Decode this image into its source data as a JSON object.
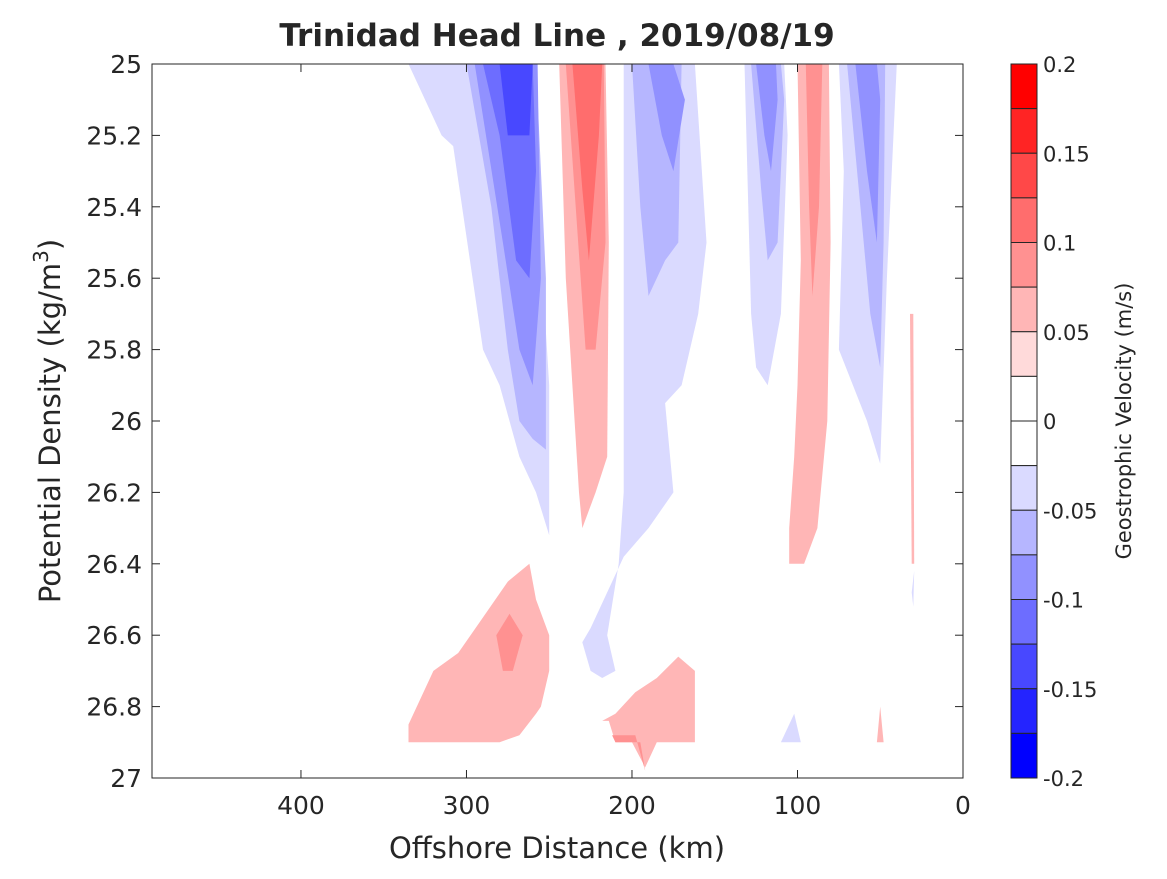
{
  "chart_data": {
    "type": "contour",
    "title": "Trinidad Head Line , 2019/08/19",
    "xlabel": "Offshore Distance (km)",
    "ylabel_main": "Potential Density (kg/m",
    "ylabel_sup": "3",
    "ylabel_close": ")",
    "xlim": [
      490,
      0
    ],
    "x_reversed": true,
    "ylim": [
      25,
      27
    ],
    "y_reversed": true,
    "x_ticks": [
      {
        "value": 400,
        "label": "400"
      },
      {
        "value": 300,
        "label": "300"
      },
      {
        "value": 200,
        "label": "200"
      },
      {
        "value": 100,
        "label": "100"
      },
      {
        "value": 0,
        "label": "0"
      }
    ],
    "y_ticks": [
      {
        "value": 25,
        "label": "25"
      },
      {
        "value": 25.2,
        "label": "25.2"
      },
      {
        "value": 25.4,
        "label": "25.4"
      },
      {
        "value": 25.6,
        "label": "25.6"
      },
      {
        "value": 25.8,
        "label": "25.8"
      },
      {
        "value": 26,
        "label": "26"
      },
      {
        "value": 26.2,
        "label": "26.2"
      },
      {
        "value": 26.4,
        "label": "26.4"
      },
      {
        "value": 26.6,
        "label": "26.6"
      },
      {
        "value": 26.8,
        "label": "26.8"
      },
      {
        "value": 27,
        "label": "27"
      }
    ],
    "colorbar": {
      "label": "Geostrophic Velocity (m/s)",
      "range": [
        -0.2,
        0.2
      ],
      "levels": [
        {
          "from": 0.175,
          "to": 0.2,
          "color": "#ff0000"
        },
        {
          "from": 0.15,
          "to": 0.175,
          "color": "#ff2424"
        },
        {
          "from": 0.125,
          "to": 0.15,
          "color": "#ff4848"
        },
        {
          "from": 0.1,
          "to": 0.125,
          "color": "#ff6d6d"
        },
        {
          "from": 0.075,
          "to": 0.1,
          "color": "#ff9191"
        },
        {
          "from": 0.05,
          "to": 0.075,
          "color": "#ffb6b6"
        },
        {
          "from": 0.025,
          "to": 0.05,
          "color": "#ffdada"
        },
        {
          "from": 0.0,
          "to": 0.025,
          "color": "#ffffff"
        },
        {
          "from": -0.025,
          "to": 0.0,
          "color": "#ffffff"
        },
        {
          "from": -0.05,
          "to": -0.025,
          "color": "#dadaff"
        },
        {
          "from": -0.075,
          "to": -0.05,
          "color": "#b6b6ff"
        },
        {
          "from": -0.1,
          "to": -0.075,
          "color": "#9191ff"
        },
        {
          "from": -0.125,
          "to": -0.1,
          "color": "#6d6dff"
        },
        {
          "from": -0.15,
          "to": -0.125,
          "color": "#4848ff"
        },
        {
          "from": -0.175,
          "to": -0.15,
          "color": "#2424ff"
        },
        {
          "from": -0.2,
          "to": -0.175,
          "color": "#0000ff"
        }
      ],
      "ticks": [
        {
          "value": 0.2,
          "label": "0.2"
        },
        {
          "value": 0.15,
          "label": "0.15"
        },
        {
          "value": 0.1,
          "label": "0.1"
        },
        {
          "value": 0.05,
          "label": "0.05"
        },
        {
          "value": 0,
          "label": "0"
        },
        {
          "value": -0.05,
          "label": "-0.05"
        },
        {
          "value": -0.1,
          "label": "-0.1"
        },
        {
          "value": -0.15,
          "label": "-0.15"
        },
        {
          "value": -0.2,
          "label": "-0.2"
        }
      ]
    },
    "regions": [
      {
        "name": "neg-jet-offshore-l1",
        "level": -0.05,
        "polygon": [
          [
            335,
            25
          ],
          [
            315,
            25.2
          ],
          [
            308,
            25.23
          ],
          [
            290,
            25.8
          ],
          [
            280,
            25.9
          ],
          [
            268,
            26.1
          ],
          [
            258,
            26.2
          ],
          [
            250,
            26.32
          ],
          [
            250,
            25.9
          ],
          [
            262,
            25
          ],
          [
            335,
            25
          ]
        ]
      },
      {
        "name": "neg-jet-offshore-l2",
        "level": -0.075,
        "polygon": [
          [
            300,
            25
          ],
          [
            285,
            25.4
          ],
          [
            275,
            25.8
          ],
          [
            268,
            26
          ],
          [
            260,
            26.05
          ],
          [
            252,
            26.08
          ],
          [
            252,
            25.6
          ],
          [
            258,
            25
          ],
          [
            300,
            25
          ]
        ]
      },
      {
        "name": "neg-jet-offshore-l3",
        "level": -0.1,
        "polygon": [
          [
            295,
            25
          ],
          [
            278,
            25.5
          ],
          [
            268,
            25.8
          ],
          [
            260,
            25.9
          ],
          [
            255,
            25.6
          ],
          [
            257,
            25
          ],
          [
            295,
            25
          ]
        ]
      },
      {
        "name": "neg-jet-offshore-l4",
        "level": -0.125,
        "polygon": [
          [
            290,
            25
          ],
          [
            280,
            25.2
          ],
          [
            270,
            25.55
          ],
          [
            262,
            25.6
          ],
          [
            258,
            25.3
          ],
          [
            260,
            25
          ],
          [
            290,
            25
          ]
        ]
      },
      {
        "name": "neg-jet-offshore-l5",
        "level": -0.15,
        "polygon": [
          [
            280,
            25
          ],
          [
            275,
            25.2
          ],
          [
            262,
            25.2
          ],
          [
            260,
            25
          ],
          [
            280,
            25
          ]
        ]
      },
      {
        "name": "pos-jet-offshore-l1",
        "level": 0.05,
        "polygon": [
          [
            244,
            25
          ],
          [
            240,
            25.6
          ],
          [
            232,
            26.2
          ],
          [
            230,
            26.3
          ],
          [
            222,
            26.2
          ],
          [
            215,
            26.1
          ],
          [
            214,
            25.5
          ],
          [
            216,
            25
          ],
          [
            244,
            25
          ]
        ]
      },
      {
        "name": "pos-jet-offshore-l2",
        "level": 0.075,
        "polygon": [
          [
            240,
            25
          ],
          [
            234,
            25.4
          ],
          [
            228,
            25.8
          ],
          [
            222,
            25.8
          ],
          [
            216,
            25.5
          ],
          [
            217,
            25
          ],
          [
            240,
            25
          ]
        ]
      },
      {
        "name": "pos-jet-offshore-l3",
        "level": 0.1,
        "polygon": [
          [
            236,
            25
          ],
          [
            230,
            25.35
          ],
          [
            226,
            25.55
          ],
          [
            220,
            25.2
          ],
          [
            218,
            25
          ],
          [
            236,
            25
          ]
        ]
      },
      {
        "name": "neg-mid-l1",
        "level": -0.05,
        "polygon": [
          [
            205,
            25
          ],
          [
            205,
            26.2
          ],
          [
            208,
            26.4
          ],
          [
            215,
            26.6
          ],
          [
            210,
            26.7
          ],
          [
            218,
            26.72
          ],
          [
            225,
            26.7
          ],
          [
            230,
            26.62
          ],
          [
            225,
            26.58
          ],
          [
            205,
            26.38
          ],
          [
            190,
            26.3
          ],
          [
            175,
            26.2
          ],
          [
            180,
            25.95
          ],
          [
            170,
            25.9
          ],
          [
            160,
            25.7
          ],
          [
            155,
            25.5
          ],
          [
            162,
            25
          ],
          [
            205,
            25
          ]
        ]
      },
      {
        "name": "neg-mid-l2",
        "level": -0.075,
        "polygon": [
          [
            200,
            25
          ],
          [
            195,
            25.4
          ],
          [
            190,
            25.65
          ],
          [
            180,
            25.55
          ],
          [
            172,
            25.5
          ],
          [
            170,
            25
          ],
          [
            200,
            25
          ]
        ]
      },
      {
        "name": "neg-mid-l3",
        "level": -0.1,
        "polygon": [
          [
            190,
            25
          ],
          [
            182,
            25.2
          ],
          [
            175,
            25.3
          ],
          [
            168,
            25.1
          ],
          [
            175,
            25
          ],
          [
            190,
            25
          ]
        ]
      },
      {
        "name": "neg-nearshore-l1",
        "level": -0.05,
        "polygon": [
          [
            132,
            25
          ],
          [
            128,
            25.7
          ],
          [
            125,
            25.85
          ],
          [
            118,
            25.9
          ],
          [
            110,
            25.7
          ],
          [
            106,
            25.2
          ],
          [
            108,
            25
          ],
          [
            132,
            25
          ]
        ]
      },
      {
        "name": "neg-nearshore-l2",
        "level": -0.075,
        "polygon": [
          [
            128,
            25
          ],
          [
            122,
            25.35
          ],
          [
            118,
            25.55
          ],
          [
            112,
            25.5
          ],
          [
            108,
            25.1
          ],
          [
            110,
            25
          ],
          [
            128,
            25
          ]
        ]
      },
      {
        "name": "neg-nearshore-l3",
        "level": -0.1,
        "polygon": [
          [
            125,
            25
          ],
          [
            120,
            25.2
          ],
          [
            116,
            25.3
          ],
          [
            112,
            25.1
          ],
          [
            113,
            25
          ],
          [
            125,
            25
          ]
        ]
      },
      {
        "name": "pos-nearshore-l1",
        "level": 0.05,
        "polygon": [
          [
            100,
            25
          ],
          [
            98,
            25.55
          ],
          [
            100,
            25.9
          ],
          [
            102,
            26.1
          ],
          [
            105,
            26.3
          ],
          [
            105,
            26.4
          ],
          [
            96,
            26.4
          ],
          [
            88,
            26.3
          ],
          [
            82,
            26
          ],
          [
            80,
            25.5
          ],
          [
            81,
            25
          ],
          [
            100,
            25
          ]
        ]
      },
      {
        "name": "pos-nearshore-l2",
        "level": 0.075,
        "polygon": [
          [
            95,
            25
          ],
          [
            93,
            25.4
          ],
          [
            91,
            25.65
          ],
          [
            87,
            25.4
          ],
          [
            85,
            25
          ],
          [
            95,
            25
          ]
        ]
      },
      {
        "name": "neg-coastal-l1",
        "level": -0.05,
        "polygon": [
          [
            75,
            25
          ],
          [
            72,
            25.3
          ],
          [
            75,
            25.8
          ],
          [
            58,
            26
          ],
          [
            50,
            26.12
          ],
          [
            46,
            25.6
          ],
          [
            43,
            25.3
          ],
          [
            40,
            25
          ],
          [
            75,
            25
          ]
        ]
      },
      {
        "name": "neg-coastal-l2",
        "level": -0.075,
        "polygon": [
          [
            70,
            25
          ],
          [
            62,
            25.4
          ],
          [
            56,
            25.7
          ],
          [
            50,
            25.85
          ],
          [
            48,
            25.5
          ],
          [
            47,
            25
          ],
          [
            70,
            25
          ]
        ]
      },
      {
        "name": "neg-coastal-l3",
        "level": -0.1,
        "polygon": [
          [
            65,
            25
          ],
          [
            58,
            25.3
          ],
          [
            52,
            25.5
          ],
          [
            50,
            25.1
          ],
          [
            52,
            25
          ],
          [
            65,
            25
          ]
        ]
      },
      {
        "name": "pos-coastal-sliver",
        "level": 0.05,
        "polygon": [
          [
            32,
            25.7
          ],
          [
            31,
            26.4
          ],
          [
            29.5,
            26.4
          ],
          [
            30,
            25.7
          ]
        ]
      },
      {
        "name": "neg-coastal-dot",
        "level": -0.05,
        "polygon": [
          [
            31,
            26.48
          ],
          [
            30,
            26.52
          ],
          [
            29.5,
            26.42
          ]
        ]
      },
      {
        "name": "pos-deep-offshore-l1",
        "level": 0.05,
        "polygon": [
          [
            335,
            26.85
          ],
          [
            330,
            26.8
          ],
          [
            320,
            26.7
          ],
          [
            305,
            26.65
          ],
          [
            290,
            26.55
          ],
          [
            275,
            26.45
          ],
          [
            262,
            26.4
          ],
          [
            258,
            26.5
          ],
          [
            250,
            26.6
          ],
          [
            250,
            26.7
          ],
          [
            255,
            26.8
          ],
          [
            258,
            26.82
          ],
          [
            268,
            26.88
          ],
          [
            280,
            26.9
          ],
          [
            335,
            26.9
          ]
        ]
      },
      {
        "name": "pos-deep-offshore-l2",
        "level": 0.075,
        "polygon": [
          [
            282,
            26.6
          ],
          [
            274,
            26.54
          ],
          [
            266,
            26.6
          ],
          [
            272,
            26.7
          ],
          [
            278,
            26.7
          ]
        ]
      },
      {
        "name": "pos-deep-mid-l1",
        "level": 0.05,
        "polygon": [
          [
            218,
            26.84
          ],
          [
            210,
            26.82
          ],
          [
            198,
            26.76
          ],
          [
            185,
            26.72
          ],
          [
            172,
            26.66
          ],
          [
            162,
            26.7
          ],
          [
            162,
            26.9
          ],
          [
            185,
            26.9
          ],
          [
            192,
            26.97
          ],
          [
            200,
            26.9
          ],
          [
            210,
            26.9
          ],
          [
            214,
            26.84
          ]
        ]
      },
      {
        "name": "pos-deep-mid-l2",
        "level": 0.075,
        "polygon": [
          [
            212,
            26.88
          ],
          [
            198,
            26.88
          ],
          [
            192,
            26.98
          ],
          [
            195,
            26.9
          ],
          [
            210,
            26.9
          ]
        ]
      },
      {
        "name": "neg-deep-nearshore",
        "level": -0.05,
        "polygon": [
          [
            110,
            26.9
          ],
          [
            102,
            26.82
          ],
          [
            98,
            26.9
          ]
        ]
      },
      {
        "name": "pos-deep-nearshore",
        "level": 0.05,
        "polygon": [
          [
            52,
            26.9
          ],
          [
            50,
            26.8
          ],
          [
            48,
            26.9
          ]
        ]
      }
    ]
  }
}
